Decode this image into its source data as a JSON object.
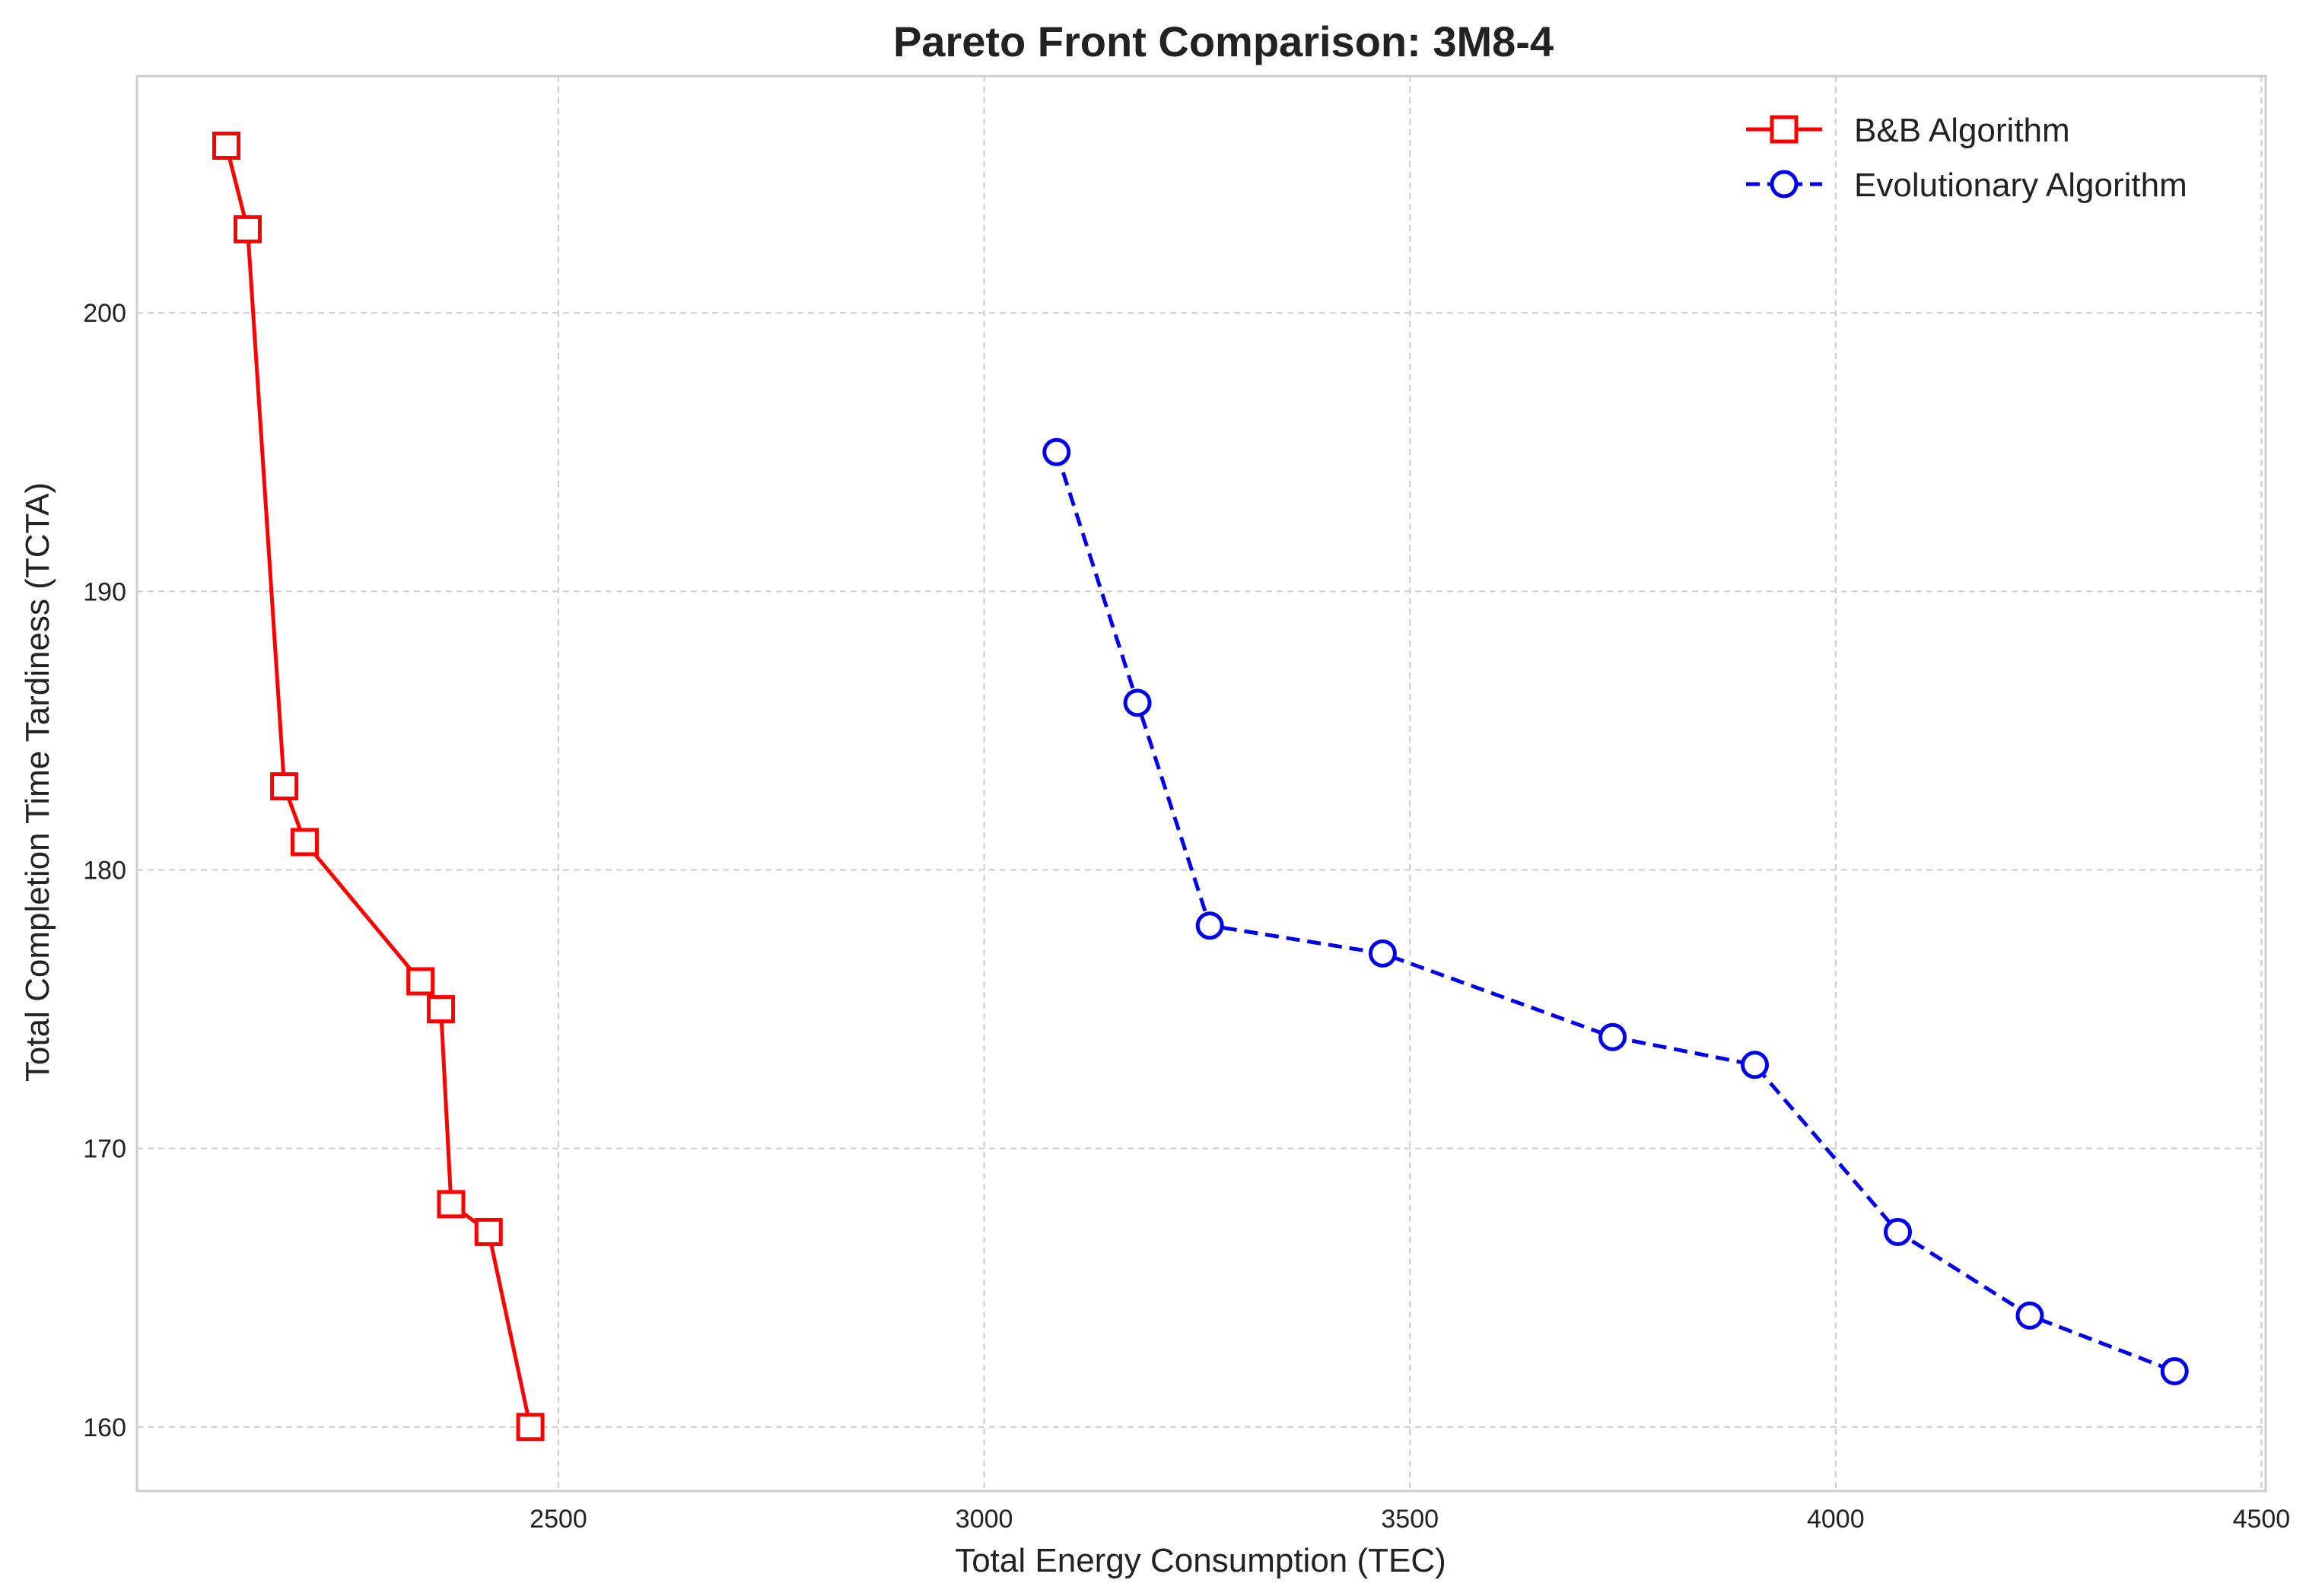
{
  "chart_data": {
    "type": "line",
    "title": "Pareto Front Comparison: 3M8-4",
    "xlabel": "Total Energy Consumption (TEC)",
    "ylabel": "Total Completion Time Tardiness (TCTA)",
    "xlim": [
      2005,
      4505
    ],
    "ylim": [
      157.7,
      208.5
    ],
    "x_ticks": [
      2500,
      3000,
      3500,
      4000,
      4500
    ],
    "y_ticks": [
      160,
      170,
      180,
      190,
      200
    ],
    "grid": true,
    "legend_position": "top-right",
    "series": [
      {
        "name": "B&B Algorithm",
        "color": "#ff0000",
        "marker": "square",
        "line_style": "solid",
        "x": [
          2110,
          2135,
          2178,
          2202,
          2338,
          2362,
          2374,
          2418,
          2467
        ],
        "y": [
          206,
          203,
          183,
          181,
          176,
          175,
          168,
          167,
          160
        ]
      },
      {
        "name": "Evolutionary Algorithm",
        "color": "#0000ee",
        "marker": "circle",
        "line_style": "dashed",
        "x": [
          3085,
          3180,
          3265,
          3468,
          3738,
          3905,
          4073,
          4228,
          4398
        ],
        "y": [
          195,
          186,
          178,
          177,
          174,
          173,
          167,
          164,
          162
        ]
      }
    ]
  }
}
